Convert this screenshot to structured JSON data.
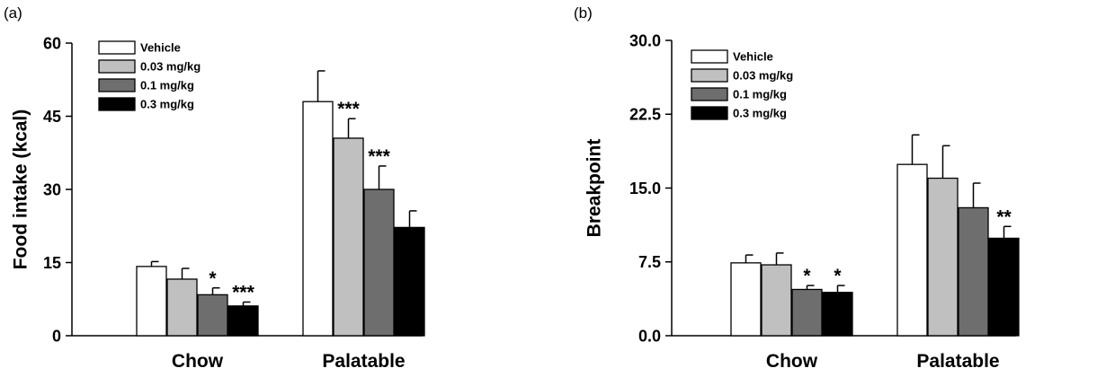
{
  "chart_data": [
    {
      "type": "bar",
      "panel_label": "(a)",
      "ylabel": "Food intake (kcal)",
      "ylim": [
        0,
        60
      ],
      "yticks": [
        "0",
        "15",
        "30",
        "45",
        "60"
      ],
      "categories": [
        "Chow",
        "Palatable"
      ],
      "legend_position": "top-left",
      "series": [
        {
          "name": "Vehicle",
          "color": "#ffffff",
          "values": [
            14.2,
            48.0
          ],
          "errors": [
            1.0,
            6.3
          ],
          "annotations": [
            "",
            ""
          ]
        },
        {
          "name": "0.03 mg/kg",
          "color": "#c0c0c0",
          "values": [
            11.6,
            40.5
          ],
          "errors": [
            2.2,
            4.0
          ],
          "annotations": [
            "",
            "***"
          ]
        },
        {
          "name": "0.1 mg/kg",
          "color": "#6e6e6e",
          "values": [
            8.4,
            30.0
          ],
          "errors": [
            1.4,
            4.8
          ],
          "annotations": [
            "*",
            "***"
          ]
        },
        {
          "name": "0.3 mg/kg",
          "color": "#000000",
          "values": [
            6.1,
            22.2
          ],
          "errors": [
            0.8,
            3.4
          ],
          "annotations": [
            "***",
            ""
          ]
        }
      ]
    },
    {
      "type": "bar",
      "panel_label": "(b)",
      "ylabel": "Breakpoint",
      "ylim": [
        0,
        30
      ],
      "yticks": [
        "0.0",
        "7.5",
        "15.0",
        "22.5",
        "30.0"
      ],
      "categories": [
        "Chow",
        "Palatable"
      ],
      "legend_position": "top-left",
      "series": [
        {
          "name": "Vehicle",
          "color": "#ffffff",
          "values": [
            7.4,
            17.4
          ],
          "errors": [
            0.8,
            3.0
          ],
          "annotations": [
            "",
            ""
          ]
        },
        {
          "name": "0.03 mg/kg",
          "color": "#c0c0c0",
          "values": [
            7.2,
            16.0
          ],
          "errors": [
            1.2,
            3.3
          ],
          "annotations": [
            "",
            ""
          ]
        },
        {
          "name": "0.1 mg/kg",
          "color": "#6e6e6e",
          "values": [
            4.7,
            13.0
          ],
          "errors": [
            0.4,
            2.5
          ],
          "annotations": [
            "*",
            ""
          ]
        },
        {
          "name": "0.3 mg/kg",
          "color": "#000000",
          "values": [
            4.4,
            9.9
          ],
          "errors": [
            0.7,
            1.2
          ],
          "annotations": [
            "*",
            "**"
          ]
        }
      ]
    }
  ]
}
